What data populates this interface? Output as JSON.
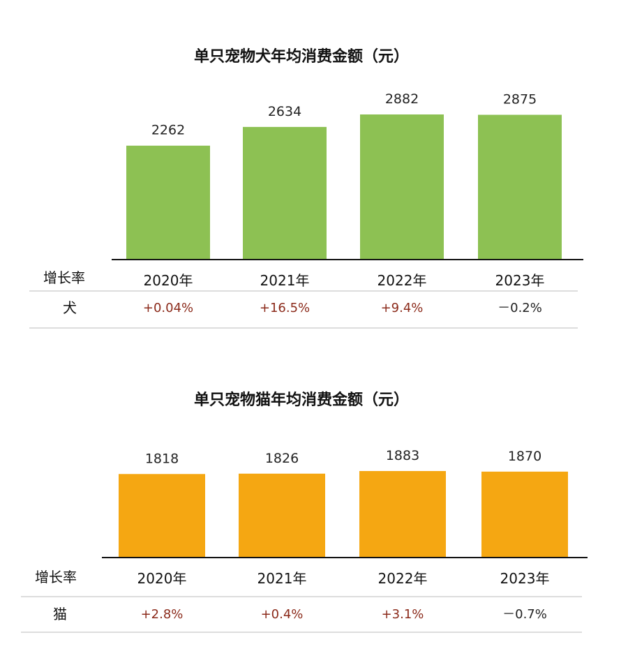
{
  "chart_data": [
    {
      "type": "bar",
      "title": "单只宠物犬年均消费金额（元）",
      "categories": [
        "2020年",
        "2021年",
        "2022年",
        "2023年"
      ],
      "values": [
        2262,
        2634,
        2882,
        2875
      ],
      "value_labels": [
        "2262",
        "2634",
        "2882",
        "2875"
      ],
      "color": "#8dc153",
      "rate_header": "增长率",
      "rate_label": "犬",
      "rates": [
        "+0.04%",
        "+16.5%",
        "+9.4%",
        "－0.2%"
      ]
    },
    {
      "type": "bar",
      "title": "单只宠物猫年均消费金额（元）",
      "categories": [
        "2020年",
        "2021年",
        "2022年",
        "2023年"
      ],
      "values": [
        1818,
        1826,
        1883,
        1870
      ],
      "value_labels": [
        "1818",
        "1826",
        "1883",
        "1870"
      ],
      "color": "#f5a712",
      "rate_header": "增长率",
      "rate_label": "猫",
      "rates": [
        "+2.8%",
        "+0.4%",
        "+3.1%",
        "－0.7%"
      ]
    }
  ]
}
